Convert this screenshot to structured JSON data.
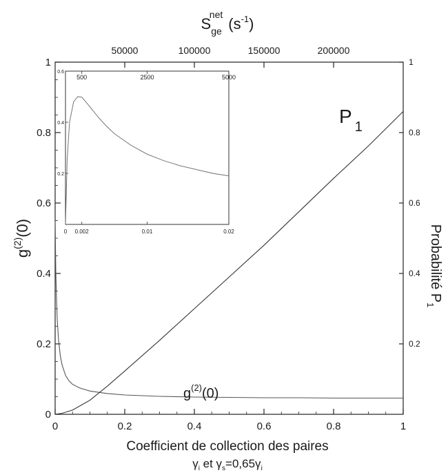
{
  "chart_data": [
    {
      "type": "line",
      "xlabel": "Coefficient de collection des paires",
      "xlabel_line2_parts": [
        "γ",
        "i",
        " et γ",
        "s",
        "=0,65γ",
        "i"
      ],
      "ylabel_left_parts": [
        "g",
        "(2)",
        "(0)"
      ],
      "ylabel_right_parts": [
        "Probabilité P",
        "1"
      ],
      "top_axis_label_parts": [
        "S",
        "ge",
        "net",
        "(s",
        "-1",
        ")"
      ],
      "xlim": [
        0,
        1
      ],
      "ylim_left": [
        0,
        1
      ],
      "ylim_right": [
        0,
        1
      ],
      "x_ticks": [
        "0",
        "0.2",
        "0.4",
        "0.6",
        "0.8",
        "1"
      ],
      "x_tick_values": [
        0,
        0.2,
        0.4,
        0.6,
        0.8,
        1
      ],
      "y_left_ticks": [
        "0",
        "0.2",
        "0.4",
        "0.6",
        "0.8",
        "1"
      ],
      "y_left_tick_values": [
        0,
        0.2,
        0.4,
        0.6,
        0.8,
        1
      ],
      "y_right_ticks": [
        "0.2",
        "0.4",
        "0.6",
        "0.8",
        "1"
      ],
      "y_right_tick_values": [
        0.2,
        0.4,
        0.6,
        0.8,
        1
      ],
      "top_ticks": [
        "50000",
        "100000",
        "150000",
        "200000"
      ],
      "top_tick_positions_x": [
        0.2,
        0.4,
        0.6,
        0.8
      ],
      "grid": false,
      "series": [
        {
          "name": "g(2)(0)",
          "label_parts": [
            "g",
            "(2)",
            "(0)"
          ],
          "axis": "left",
          "x": [
            0.0,
            0.002,
            0.004,
            0.006,
            0.01,
            0.015,
            0.02,
            0.03,
            0.04,
            0.05,
            0.07,
            0.1,
            0.15,
            0.2,
            0.3,
            0.4,
            0.5,
            0.6,
            0.7,
            0.8,
            0.9,
            1.0
          ],
          "y": [
            0.55,
            0.4,
            0.33,
            0.27,
            0.21,
            0.165,
            0.14,
            0.11,
            0.095,
            0.085,
            0.075,
            0.066,
            0.059,
            0.055,
            0.051,
            0.049,
            0.048,
            0.047,
            0.047,
            0.046,
            0.046,
            0.046
          ]
        },
        {
          "name": "P1",
          "label_parts": [
            "P",
            "1"
          ],
          "axis": "right",
          "x": [
            0.0,
            0.02,
            0.05,
            0.1,
            0.15,
            0.2,
            0.3,
            0.4,
            0.5,
            0.6,
            0.7,
            0.8,
            0.9,
            1.0
          ],
          "y": [
            0.0,
            0.003,
            0.012,
            0.04,
            0.08,
            0.123,
            0.21,
            0.3,
            0.39,
            0.48,
            0.575,
            0.67,
            0.762,
            0.86
          ]
        }
      ]
    },
    {
      "type": "line",
      "inset": true,
      "xlim": [
        0,
        0.02
      ],
      "ylim": [
        0,
        0.6
      ],
      "x_ticks": [
        "0",
        "0.002",
        "0.01",
        "0.02"
      ],
      "x_tick_values": [
        0,
        0.002,
        0.01,
        0.02
      ],
      "y_ticks": [
        "0.6",
        "0.4",
        "0.2"
      ],
      "y_tick_values": [
        0.6,
        0.4,
        0.2
      ],
      "top_ticks": [
        "500",
        "2500",
        "5000"
      ],
      "top_tick_positions_x": [
        0.002,
        0.01,
        0.02
      ],
      "series": [
        {
          "x": [
            0.0,
            0.0002,
            0.0005,
            0.001,
            0.0015,
            0.002,
            0.003,
            0.004,
            0.005,
            0.006,
            0.008,
            0.01,
            0.012,
            0.014,
            0.016,
            0.018,
            0.02
          ],
          "y": [
            0.0,
            0.25,
            0.4,
            0.48,
            0.5,
            0.498,
            0.46,
            0.42,
            0.385,
            0.355,
            0.31,
            0.275,
            0.25,
            0.23,
            0.215,
            0.2,
            0.19
          ]
        }
      ]
    }
  ]
}
